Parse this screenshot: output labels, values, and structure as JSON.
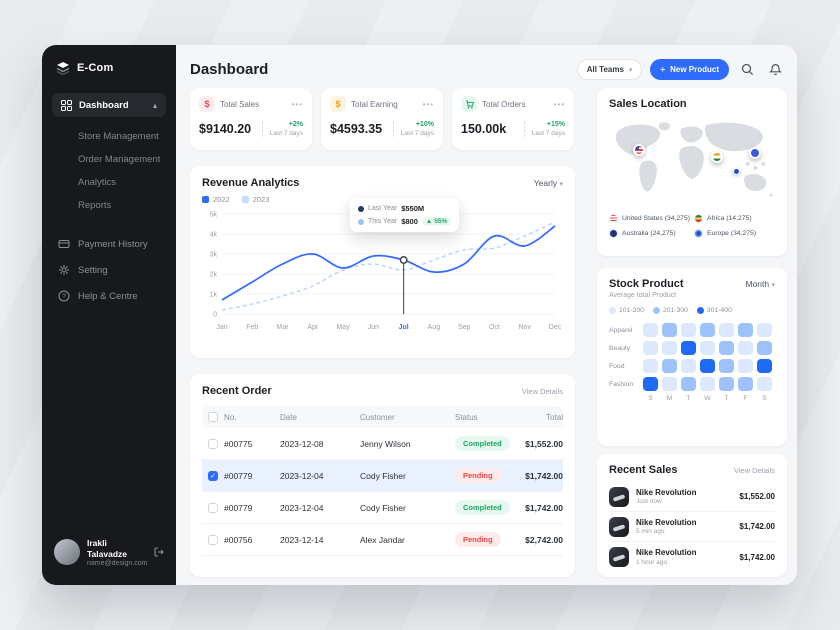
{
  "sidebar": {
    "logo_text": "E-Com",
    "dashboard_label": "Dashboard",
    "subitems": [
      "Store Management",
      "Order Management",
      "Analytics",
      "Reports"
    ],
    "items": [
      "Payment History",
      "Setting",
      "Help & Centre"
    ],
    "user": {
      "name": "Irakli Talavadze",
      "email": "name@design.com"
    }
  },
  "header": {
    "title": "Dashboard",
    "team_selector_label": "All Teams",
    "new_product_label": "New Product"
  },
  "stats": [
    {
      "label": "Total Sales",
      "value": "$9140.20",
      "change": "+2%",
      "period": "Last 7 days",
      "icon": "dollar-icon",
      "color": "#ef4444",
      "bg": "#fdecec"
    },
    {
      "label": "Total Earning",
      "value": "$4593.35",
      "change": "+10%",
      "period": "Last 7 days",
      "icon": "dollar-icon",
      "color": "#f59e0b",
      "bg": "#fdf3e2"
    },
    {
      "label": "Total Orders",
      "value": "150.00k",
      "change": "+15%",
      "period": "Last 7 days",
      "icon": "cart-icon",
      "color": "#1ea564",
      "bg": "#e7f8ef"
    }
  ],
  "revenue": {
    "title": "Revenue Analytics",
    "range_label": "Yearly",
    "tooltip": {
      "last_year_label": "Last Year",
      "last_year_value": "$550M",
      "this_year_label": "This Year",
      "this_year_value": "$800",
      "delta": "55%"
    }
  },
  "chart_data": {
    "type": "line",
    "title": "Revenue Analytics",
    "x": [
      "Jan",
      "Feb",
      "Mar",
      "Apr",
      "May",
      "Jun",
      "Jul",
      "Aug",
      "Sep",
      "Oct",
      "Nov",
      "Dec"
    ],
    "series": [
      {
        "name": "2022",
        "color": "#2f6bff",
        "dash": false,
        "values": [
          0.7,
          1.6,
          2.5,
          3.0,
          2.3,
          2.9,
          2.7,
          2.1,
          2.5,
          3.9,
          3.4,
          4.4
        ]
      },
      {
        "name": "2023",
        "color": "#b9d2fb",
        "dash": true,
        "values": [
          0.2,
          0.5,
          0.9,
          1.4,
          2.2,
          2.5,
          2.2,
          2.7,
          3.2,
          3.3,
          3.9,
          4.6
        ]
      }
    ],
    "ylim": [
      0,
      5
    ],
    "yticks": [
      "0",
      "1k",
      "2k",
      "3k",
      "4k",
      "5k"
    ],
    "active_month": "Jul",
    "marker": {
      "series": 0,
      "index": 6
    },
    "legend_position": "top-left",
    "grid": true
  },
  "sales_location": {
    "title": "Sales Location",
    "legend": [
      {
        "label": "United States (34,275)"
      },
      {
        "label": "Africa (14,275)"
      },
      {
        "label": "Australia (24,275)"
      },
      {
        "label": "Europe (34,275)"
      }
    ]
  },
  "stock": {
    "title": "Stock Product",
    "range_label": "Month",
    "subtitle": "Average total Product",
    "legend": [
      "101-200",
      "201-300",
      "301-400"
    ],
    "legend_colors": [
      "#dbe8fe",
      "#9ec2fb",
      "#1f6bf5"
    ],
    "days": [
      "S",
      "M",
      "T",
      "W",
      "T",
      "F",
      "S"
    ],
    "rows": [
      {
        "label": "Apparel",
        "levels": [
          1,
          2,
          1,
          2,
          1,
          2,
          1
        ]
      },
      {
        "label": "Beauty",
        "levels": [
          1,
          1,
          3,
          1,
          2,
          1,
          2
        ]
      },
      {
        "label": "Food",
        "levels": [
          1,
          2,
          1,
          3,
          2,
          1,
          3
        ]
      },
      {
        "label": "Fashion",
        "levels": [
          3,
          1,
          2,
          1,
          2,
          2,
          1
        ]
      }
    ]
  },
  "orders": {
    "title": "Recent Order",
    "view_details": "View Details",
    "columns": [
      "No.",
      "Date",
      "Customer",
      "Status",
      "Total"
    ],
    "rows": [
      {
        "no": "#00775",
        "date": "2023-12-08",
        "customer": "Jenny Wilson",
        "status": "Completed",
        "total": "$1,552.00",
        "selected": false
      },
      {
        "no": "#00779",
        "date": "2023-12-04",
        "customer": "Cody Fisher",
        "status": "Pending",
        "total": "$1,742.00",
        "selected": true
      },
      {
        "no": "#00779",
        "date": "2023-12-04",
        "customer": "Cody Fisher",
        "status": "Completed",
        "total": "$1,742.00",
        "selected": false
      },
      {
        "no": "#00756",
        "date": "2023-12-14",
        "customer": "Alex Jandar",
        "status": "Pending",
        "total": "$2,742.00",
        "selected": false
      }
    ]
  },
  "recent_sales": {
    "title": "Recent Sales",
    "view_details": "View Details",
    "items": [
      {
        "name": "Nike Revolution",
        "time": "Just now",
        "price": "$1,552.00"
      },
      {
        "name": "Nike Revolution",
        "time": "5 min ago",
        "price": "$1,742.00"
      },
      {
        "name": "Nike Revolution",
        "time": "1 hour ago",
        "price": "$1,742.00"
      }
    ]
  },
  "colors": {
    "accent": "#2f6bff",
    "success": "#1ea564",
    "danger": "#f04444",
    "sidebar": "#17191d"
  }
}
